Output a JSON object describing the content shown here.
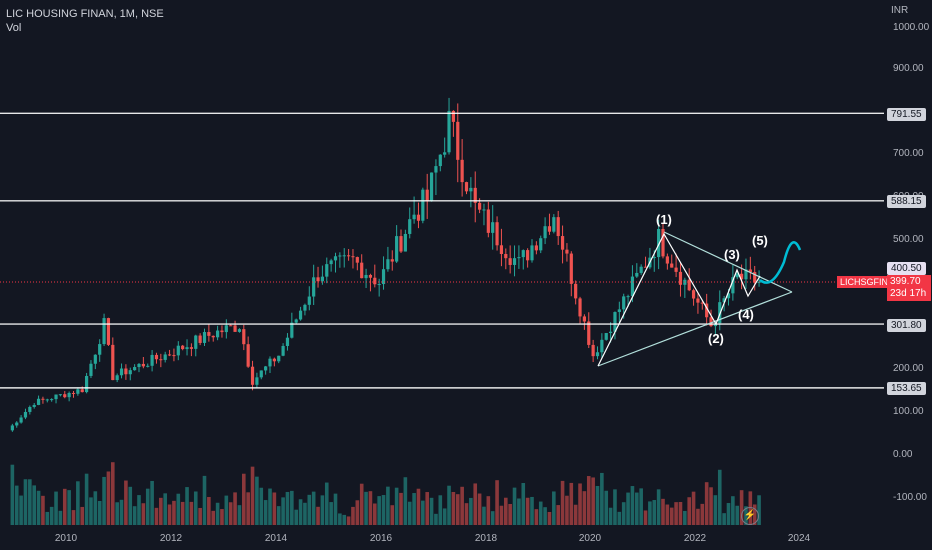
{
  "header": {
    "symbol_line": "LIC HOUSING FINAN, 1M, NSE",
    "volume_label": "Vol"
  },
  "price_axis": {
    "currency": "INR",
    "ticks": [
      "1000.00",
      "900.00",
      "700.00",
      "600.00",
      "500.00",
      "200.00",
      "100.00",
      "0.00",
      "-100.00"
    ]
  },
  "time_axis": {
    "ticks": [
      "2010",
      "2012",
      "2014",
      "2016",
      "2018",
      "2020",
      "2022",
      "2024"
    ]
  },
  "horizontal_levels": [
    {
      "label": "791.55",
      "value": 791.55
    },
    {
      "label": "588.15",
      "value": 588.15
    },
    {
      "label": "400.50",
      "value": 400.5
    },
    {
      "label": "301.80",
      "value": 301.8
    },
    {
      "label": "153.65",
      "value": 153.65
    }
  ],
  "current_price": {
    "symbol": "LICHSGFIN",
    "price": "399.70",
    "countdown": "23d 17h"
  },
  "wave_labels": [
    "(1)",
    "(2)",
    "(3)",
    "(4)",
    "(5)"
  ],
  "bottom_icon": "flash-icon",
  "colors": {
    "background": "#131722",
    "up": "#26a69a",
    "down": "#ef5350",
    "level_line": "#ffffff",
    "triangle": "#b2dfdb",
    "price_line": "#f23645",
    "projection": "#00bcd4"
  },
  "chart_data": {
    "type": "candlestick",
    "interval": "1M",
    "ylim": [
      -100,
      1000
    ],
    "x_range": [
      "2009-01",
      "2024-06"
    ],
    "ohlc_keypoints": [
      {
        "date": "2009-01",
        "close": 55
      },
      {
        "date": "2009-07",
        "close": 120
      },
      {
        "date": "2010-06",
        "close": 150
      },
      {
        "date": "2010-11",
        "close": 300
      },
      {
        "date": "2011-01",
        "close": 180
      },
      {
        "date": "2012-01",
        "close": 230
      },
      {
        "date": "2012-12",
        "close": 280
      },
      {
        "date": "2013-06",
        "close": 300
      },
      {
        "date": "2013-09",
        "close": 170
      },
      {
        "date": "2014-03",
        "close": 230
      },
      {
        "date": "2014-12",
        "close": 420
      },
      {
        "date": "2015-08",
        "close": 450
      },
      {
        "date": "2016-02",
        "close": 400
      },
      {
        "date": "2016-10",
        "close": 560
      },
      {
        "date": "2017-01",
        "close": 590
      },
      {
        "date": "2017-06",
        "close": 770
      },
      {
        "date": "2017-12",
        "close": 570
      },
      {
        "date": "2018-10",
        "close": 440
      },
      {
        "date": "2019-06",
        "close": 560
      },
      {
        "date": "2020-03",
        "close": 230
      },
      {
        "date": "2021-06",
        "close": 500
      },
      {
        "date": "2022-06",
        "close": 300
      },
      {
        "date": "2022-12",
        "close": 410
      },
      {
        "date": "2023-05",
        "close": 400
      }
    ]
  }
}
